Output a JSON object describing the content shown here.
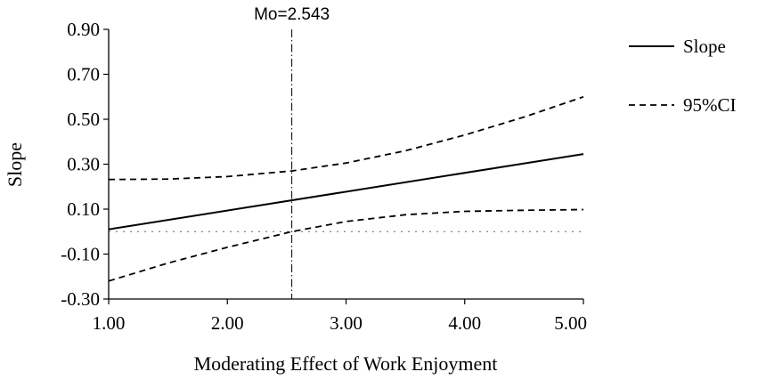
{
  "chart_data": {
    "type": "line",
    "title": "",
    "xlabel": "Moderating Effect of Work Enjoyment",
    "ylabel": "Slope",
    "xlim": [
      1.0,
      5.0
    ],
    "ylim": [
      -0.3,
      0.9
    ],
    "x_ticks": [
      1.0,
      2.0,
      3.0,
      4.0,
      5.0
    ],
    "x_tick_labels": [
      "1.00",
      "2.00",
      "3.00",
      "4.00",
      "5.00"
    ],
    "y_ticks": [
      0.9,
      0.7,
      0.5,
      0.3,
      0.1,
      -0.1,
      -0.3
    ],
    "y_tick_labels": [
      "0.90",
      "0.70",
      "0.50",
      "0.30",
      "0.10",
      "-0.10",
      "-0.30"
    ],
    "grid": false,
    "legend_position": "top-right",
    "series": [
      {
        "name": "Slope",
        "style": "solid",
        "x": [
          1.0,
          5.0
        ],
        "y": [
          0.01,
          0.345
        ]
      },
      {
        "name": "95%CI",
        "style": "dashed",
        "x": [
          1.0,
          1.5,
          2.0,
          2.543,
          3.0,
          3.5,
          4.0,
          4.5,
          5.0
        ],
        "y": [
          0.232,
          0.234,
          0.245,
          0.27,
          0.305,
          0.36,
          0.43,
          0.51,
          0.6
        ]
      },
      {
        "name": "",
        "style": "dashed",
        "x": [
          1.0,
          1.5,
          2.0,
          2.543,
          3.0,
          3.5,
          4.0,
          4.5,
          5.0
        ],
        "y": [
          -0.22,
          -0.14,
          -0.07,
          0.0,
          0.045,
          0.075,
          0.09,
          0.095,
          0.098
        ]
      }
    ],
    "reference_lines": [
      {
        "orientation": "horizontal",
        "value": 0.0,
        "style": "dotted"
      },
      {
        "orientation": "vertical",
        "value": 2.543,
        "style": "dash-dot",
        "label": "Mo=2.543"
      }
    ],
    "legend": [
      {
        "label": "Slope",
        "style": "solid"
      },
      {
        "label": "95%CI",
        "style": "dashed"
      }
    ]
  }
}
